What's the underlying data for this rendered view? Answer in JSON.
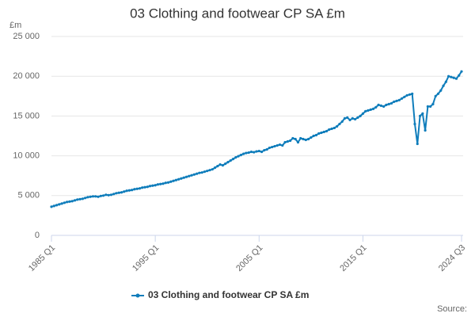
{
  "chart_data": {
    "type": "line",
    "title": "03 Clothing and footwear CP SA £m",
    "y_label": "£m",
    "source": "Source:",
    "categories": [
      "1985 Q1",
      null,
      null,
      null,
      null,
      null,
      null,
      null,
      null,
      null,
      null,
      null,
      null,
      null,
      null,
      null,
      null,
      null,
      null,
      null,
      null,
      null,
      null,
      null,
      null,
      null,
      null,
      null,
      null,
      null,
      null,
      null,
      null,
      null,
      null,
      null,
      null,
      null,
      null,
      null,
      "1995 Q1",
      null,
      null,
      null,
      null,
      null,
      null,
      null,
      null,
      null,
      null,
      null,
      null,
      null,
      null,
      null,
      null,
      null,
      null,
      null,
      null,
      null,
      null,
      null,
      null,
      null,
      null,
      null,
      null,
      null,
      null,
      null,
      null,
      null,
      null,
      null,
      null,
      null,
      null,
      null,
      "2005 Q1",
      null,
      null,
      null,
      null,
      null,
      null,
      null,
      null,
      null,
      null,
      null,
      null,
      null,
      null,
      null,
      null,
      null,
      null,
      null,
      null,
      null,
      null,
      null,
      null,
      null,
      null,
      null,
      null,
      null,
      null,
      null,
      null,
      null,
      null,
      null,
      null,
      null,
      null,
      null,
      "2015 Q1",
      null,
      null,
      null,
      null,
      null,
      null,
      null,
      null,
      null,
      null,
      null,
      null,
      null,
      null,
      null,
      null,
      null,
      null,
      null,
      null,
      null,
      null,
      null,
      null,
      null,
      null,
      null,
      null,
      null,
      null,
      null,
      null,
      null,
      null,
      null,
      null,
      null,
      "2024 Q3"
    ],
    "series": [
      {
        "name": "03 Clothing and footwear CP SA £m",
        "color": "#0f7dbb",
        "values": [
          3600,
          3700,
          3800,
          3900,
          4000,
          4100,
          4200,
          4250,
          4300,
          4400,
          4500,
          4550,
          4600,
          4700,
          4800,
          4850,
          4900,
          4900,
          4850,
          4950,
          5000,
          5100,
          5050,
          5100,
          5200,
          5300,
          5350,
          5400,
          5500,
          5600,
          5650,
          5700,
          5800,
          5850,
          5900,
          6000,
          6050,
          6100,
          6200,
          6250,
          6300,
          6400,
          6450,
          6500,
          6600,
          6650,
          6750,
          6850,
          6950,
          7050,
          7150,
          7250,
          7350,
          7450,
          7550,
          7650,
          7750,
          7850,
          7900,
          8000,
          8100,
          8200,
          8300,
          8500,
          8700,
          8900,
          8800,
          9000,
          9200,
          9400,
          9600,
          9800,
          9950,
          10100,
          10250,
          10350,
          10400,
          10500,
          10450,
          10550,
          10600,
          10500,
          10700,
          10800,
          11000,
          11100,
          11200,
          11300,
          11400,
          11300,
          11700,
          11800,
          11900,
          12200,
          12100,
          11700,
          12200,
          12100,
          12000,
          12100,
          12300,
          12500,
          12600,
          12800,
          12900,
          13000,
          13100,
          13300,
          13400,
          13500,
          13700,
          14000,
          14300,
          14700,
          14800,
          14500,
          14700,
          14600,
          14800,
          15000,
          15300,
          15600,
          15700,
          15800,
          15900,
          16100,
          16400,
          16300,
          16200,
          16400,
          16500,
          16600,
          16800,
          16900,
          17000,
          17200,
          17400,
          17600,
          17700,
          17800,
          14000,
          11500,
          15000,
          15300,
          13200,
          16200,
          16200,
          16500,
          17500,
          17800,
          18200,
          18800,
          19300,
          20000,
          19900,
          19800,
          19700,
          20100,
          20600
        ]
      }
    ],
    "ylim": [
      0,
      25000
    ],
    "yticks": [
      0,
      {
        "value": 5000,
        "label": "5 000"
      },
      {
        "value": 10000,
        "label": "10 000"
      },
      {
        "value": 15000,
        "label": "15 000"
      },
      {
        "value": 20000,
        "label": "20 000"
      },
      {
        "value": 25000,
        "label": "25 000"
      }
    ],
    "grid": true
  }
}
